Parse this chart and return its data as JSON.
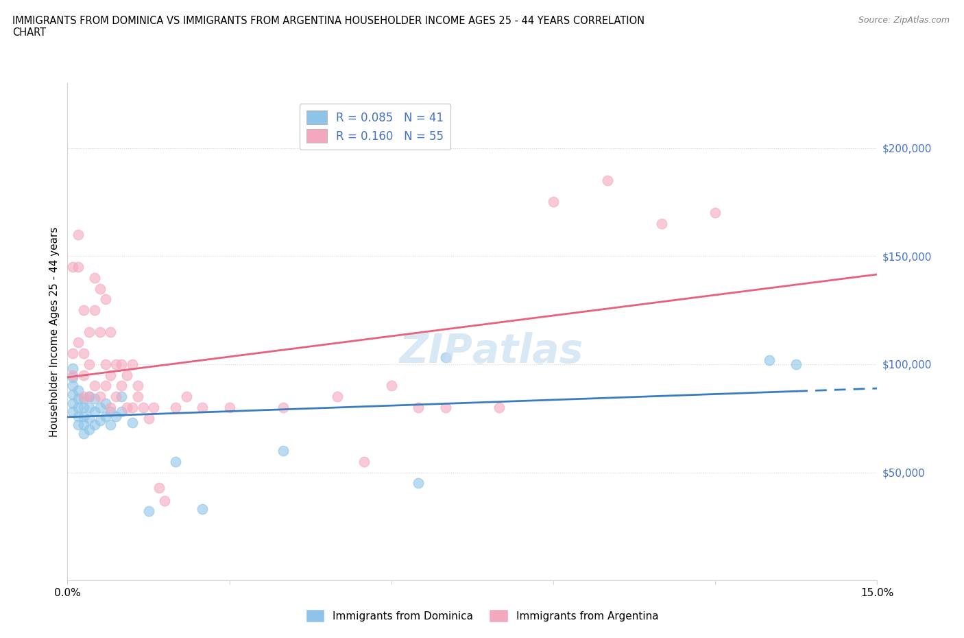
{
  "title_line1": "IMMIGRANTS FROM DOMINICA VS IMMIGRANTS FROM ARGENTINA HOUSEHOLDER INCOME AGES 25 - 44 YEARS CORRELATION",
  "title_line2": "CHART",
  "source": "Source: ZipAtlas.com",
  "ylabel": "Householder Income Ages 25 - 44 years",
  "xlim": [
    0.0,
    0.15
  ],
  "ylim": [
    0,
    230000
  ],
  "ytick_vals": [
    50000,
    100000,
    150000,
    200000
  ],
  "ytick_labels": [
    "$50,000",
    "$100,000",
    "$150,000",
    "$200,000"
  ],
  "xticks": [
    0.0,
    0.03,
    0.06,
    0.09,
    0.12,
    0.15
  ],
  "xtick_labels": [
    "0.0%",
    "",
    "",
    "",
    "",
    "15.0%"
  ],
  "dominica_color": "#8ec4e8",
  "argentina_color": "#f4a8be",
  "dominica_R": 0.085,
  "dominica_N": 41,
  "argentina_R": 0.16,
  "argentina_N": 55,
  "dominica_line_color": "#3a7dbf",
  "argentina_line_color": "#e8607a",
  "watermark": "ZIPatlas",
  "dominica_legend": "Immigrants from Dominica",
  "argentina_legend": "Immigrants from Argentina",
  "dominica_x": [
    0.001,
    0.001,
    0.001,
    0.001,
    0.001,
    0.001,
    0.002,
    0.002,
    0.002,
    0.002,
    0.002,
    0.003,
    0.003,
    0.003,
    0.003,
    0.003,
    0.004,
    0.004,
    0.004,
    0.004,
    0.005,
    0.005,
    0.005,
    0.006,
    0.006,
    0.007,
    0.007,
    0.008,
    0.008,
    0.009,
    0.01,
    0.01,
    0.012,
    0.015,
    0.02,
    0.025,
    0.04,
    0.065,
    0.07,
    0.13,
    0.135
  ],
  "dominica_y": [
    78000,
    82000,
    86000,
    90000,
    94000,
    98000,
    72000,
    76000,
    80000,
    84000,
    88000,
    68000,
    72000,
    76000,
    80000,
    84000,
    70000,
    75000,
    80000,
    85000,
    72000,
    78000,
    84000,
    74000,
    80000,
    76000,
    82000,
    72000,
    78000,
    76000,
    78000,
    85000,
    73000,
    32000,
    55000,
    33000,
    60000,
    45000,
    103000,
    102000,
    100000
  ],
  "argentina_x": [
    0.001,
    0.001,
    0.001,
    0.002,
    0.002,
    0.002,
    0.003,
    0.003,
    0.003,
    0.003,
    0.004,
    0.004,
    0.004,
    0.005,
    0.005,
    0.005,
    0.006,
    0.006,
    0.006,
    0.007,
    0.007,
    0.007,
    0.008,
    0.008,
    0.008,
    0.009,
    0.009,
    0.01,
    0.01,
    0.011,
    0.011,
    0.012,
    0.012,
    0.013,
    0.013,
    0.014,
    0.015,
    0.016,
    0.017,
    0.018,
    0.02,
    0.022,
    0.025,
    0.03,
    0.04,
    0.05,
    0.055,
    0.06,
    0.065,
    0.07,
    0.08,
    0.09,
    0.1,
    0.11,
    0.12
  ],
  "argentina_y": [
    105000,
    95000,
    145000,
    110000,
    145000,
    160000,
    85000,
    95000,
    105000,
    125000,
    85000,
    100000,
    115000,
    90000,
    125000,
    140000,
    85000,
    115000,
    135000,
    90000,
    100000,
    130000,
    80000,
    95000,
    115000,
    85000,
    100000,
    90000,
    100000,
    80000,
    95000,
    80000,
    100000,
    85000,
    90000,
    80000,
    75000,
    80000,
    43000,
    37000,
    80000,
    85000,
    80000,
    80000,
    80000,
    85000,
    55000,
    90000,
    80000,
    80000,
    80000,
    175000,
    185000,
    165000,
    170000
  ]
}
